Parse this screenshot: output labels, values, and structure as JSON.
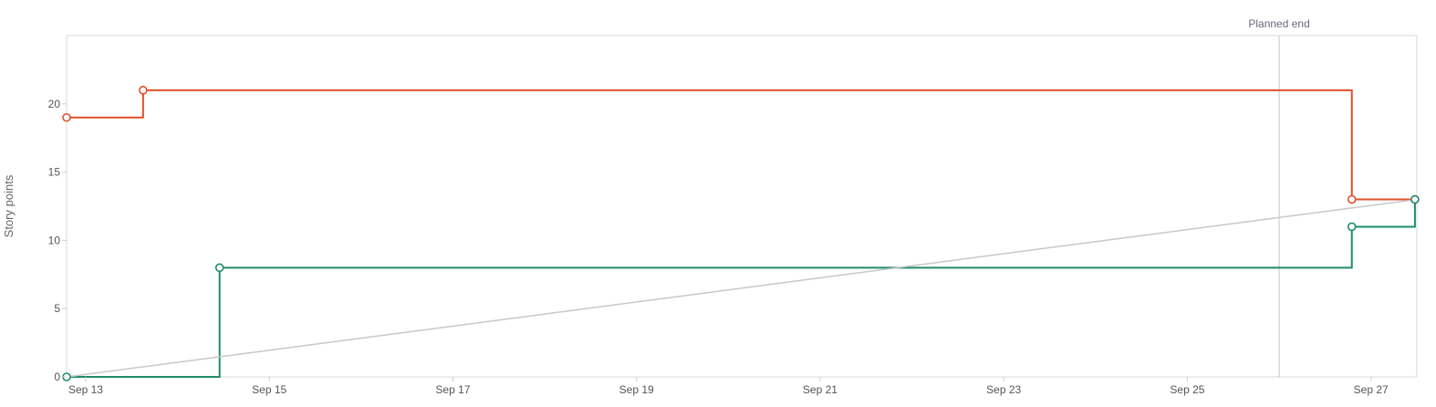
{
  "chart_data": {
    "type": "line",
    "title": "",
    "xlabel": "",
    "ylabel": "Story points",
    "x_type": "date",
    "xlim": [
      "2023-09-12T19:00",
      "2023-09-27T12:00"
    ],
    "ylim": [
      0,
      25
    ],
    "y_ticks": [
      0,
      5,
      10,
      15,
      20
    ],
    "x_ticks": [
      "Sep 13",
      "Sep 15",
      "Sep 17",
      "Sep 19",
      "Sep 21",
      "Sep 23",
      "Sep 25",
      "Sep 27"
    ],
    "x_tick_dates": [
      "2023-09-13",
      "2023-09-15",
      "2023-09-17",
      "2023-09-19",
      "2023-09-21",
      "2023-09-23",
      "2023-09-25",
      "2023-09-27"
    ],
    "grid": false,
    "annotations": [
      {
        "type": "vertical-line",
        "x": "2023-09-26T00:00",
        "label": "Planned end"
      }
    ],
    "series": [
      {
        "step": true,
        "color": "#e0502a",
        "points": [
          {
            "x": "2023-09-12T19:00",
            "y": 19
          },
          {
            "x": "2023-09-13T15:00",
            "y": 21
          },
          {
            "x": "2023-09-26T19:00",
            "y": 13
          },
          {
            "x": "2023-09-27T11:30",
            "y": 13
          }
        ]
      },
      {
        "step": true,
        "color": "#1e8c68",
        "points": [
          {
            "x": "2023-09-12T19:00",
            "y": 0
          },
          {
            "x": "2023-09-14T11:00",
            "y": 8
          },
          {
            "x": "2023-09-26T19:00",
            "y": 11
          },
          {
            "x": "2023-09-27T11:30",
            "y": 13
          }
        ]
      },
      {
        "step": false,
        "color": "#c8c8c8",
        "markers": false,
        "points": [
          {
            "x": "2023-09-12T19:00",
            "y": 0
          },
          {
            "x": "2023-09-27T12:00",
            "y": 13
          }
        ]
      }
    ]
  }
}
